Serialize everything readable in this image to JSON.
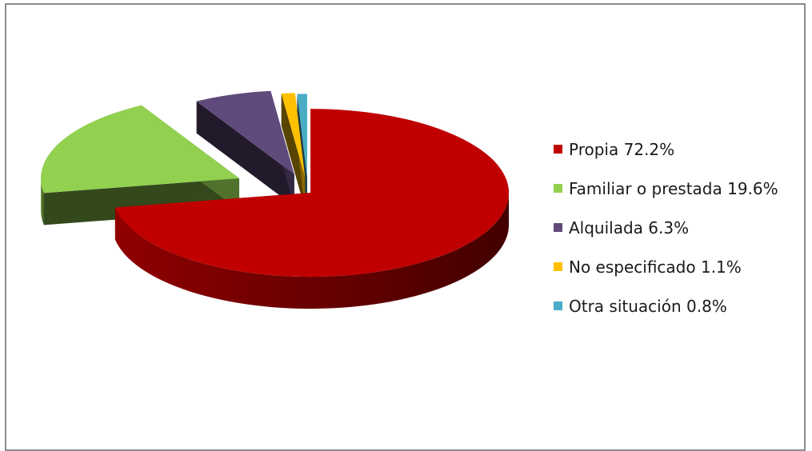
{
  "chart_data": {
    "type": "pie",
    "title": "",
    "exploded_3d": true,
    "legend_position": "right",
    "slices": [
      {
        "label": "Propia 72.2%",
        "name": "Propia",
        "value": 72.2,
        "color": "#c00000"
      },
      {
        "label": "Familiar o prestada 19.6%",
        "name": "Familiar o prestada",
        "value": 19.6,
        "color": "#92d050"
      },
      {
        "label": "Alquilada 6.3%",
        "name": "Alquilada",
        "value": 6.3,
        "color": "#604a7b"
      },
      {
        "label": "No especificado 1.1%",
        "name": "No especificado",
        "value": 1.1,
        "color": "#ffc000"
      },
      {
        "label": "Otra situación 0.8%",
        "name": "Otra situación",
        "value": 0.8,
        "color": "#4bacc6"
      }
    ]
  }
}
